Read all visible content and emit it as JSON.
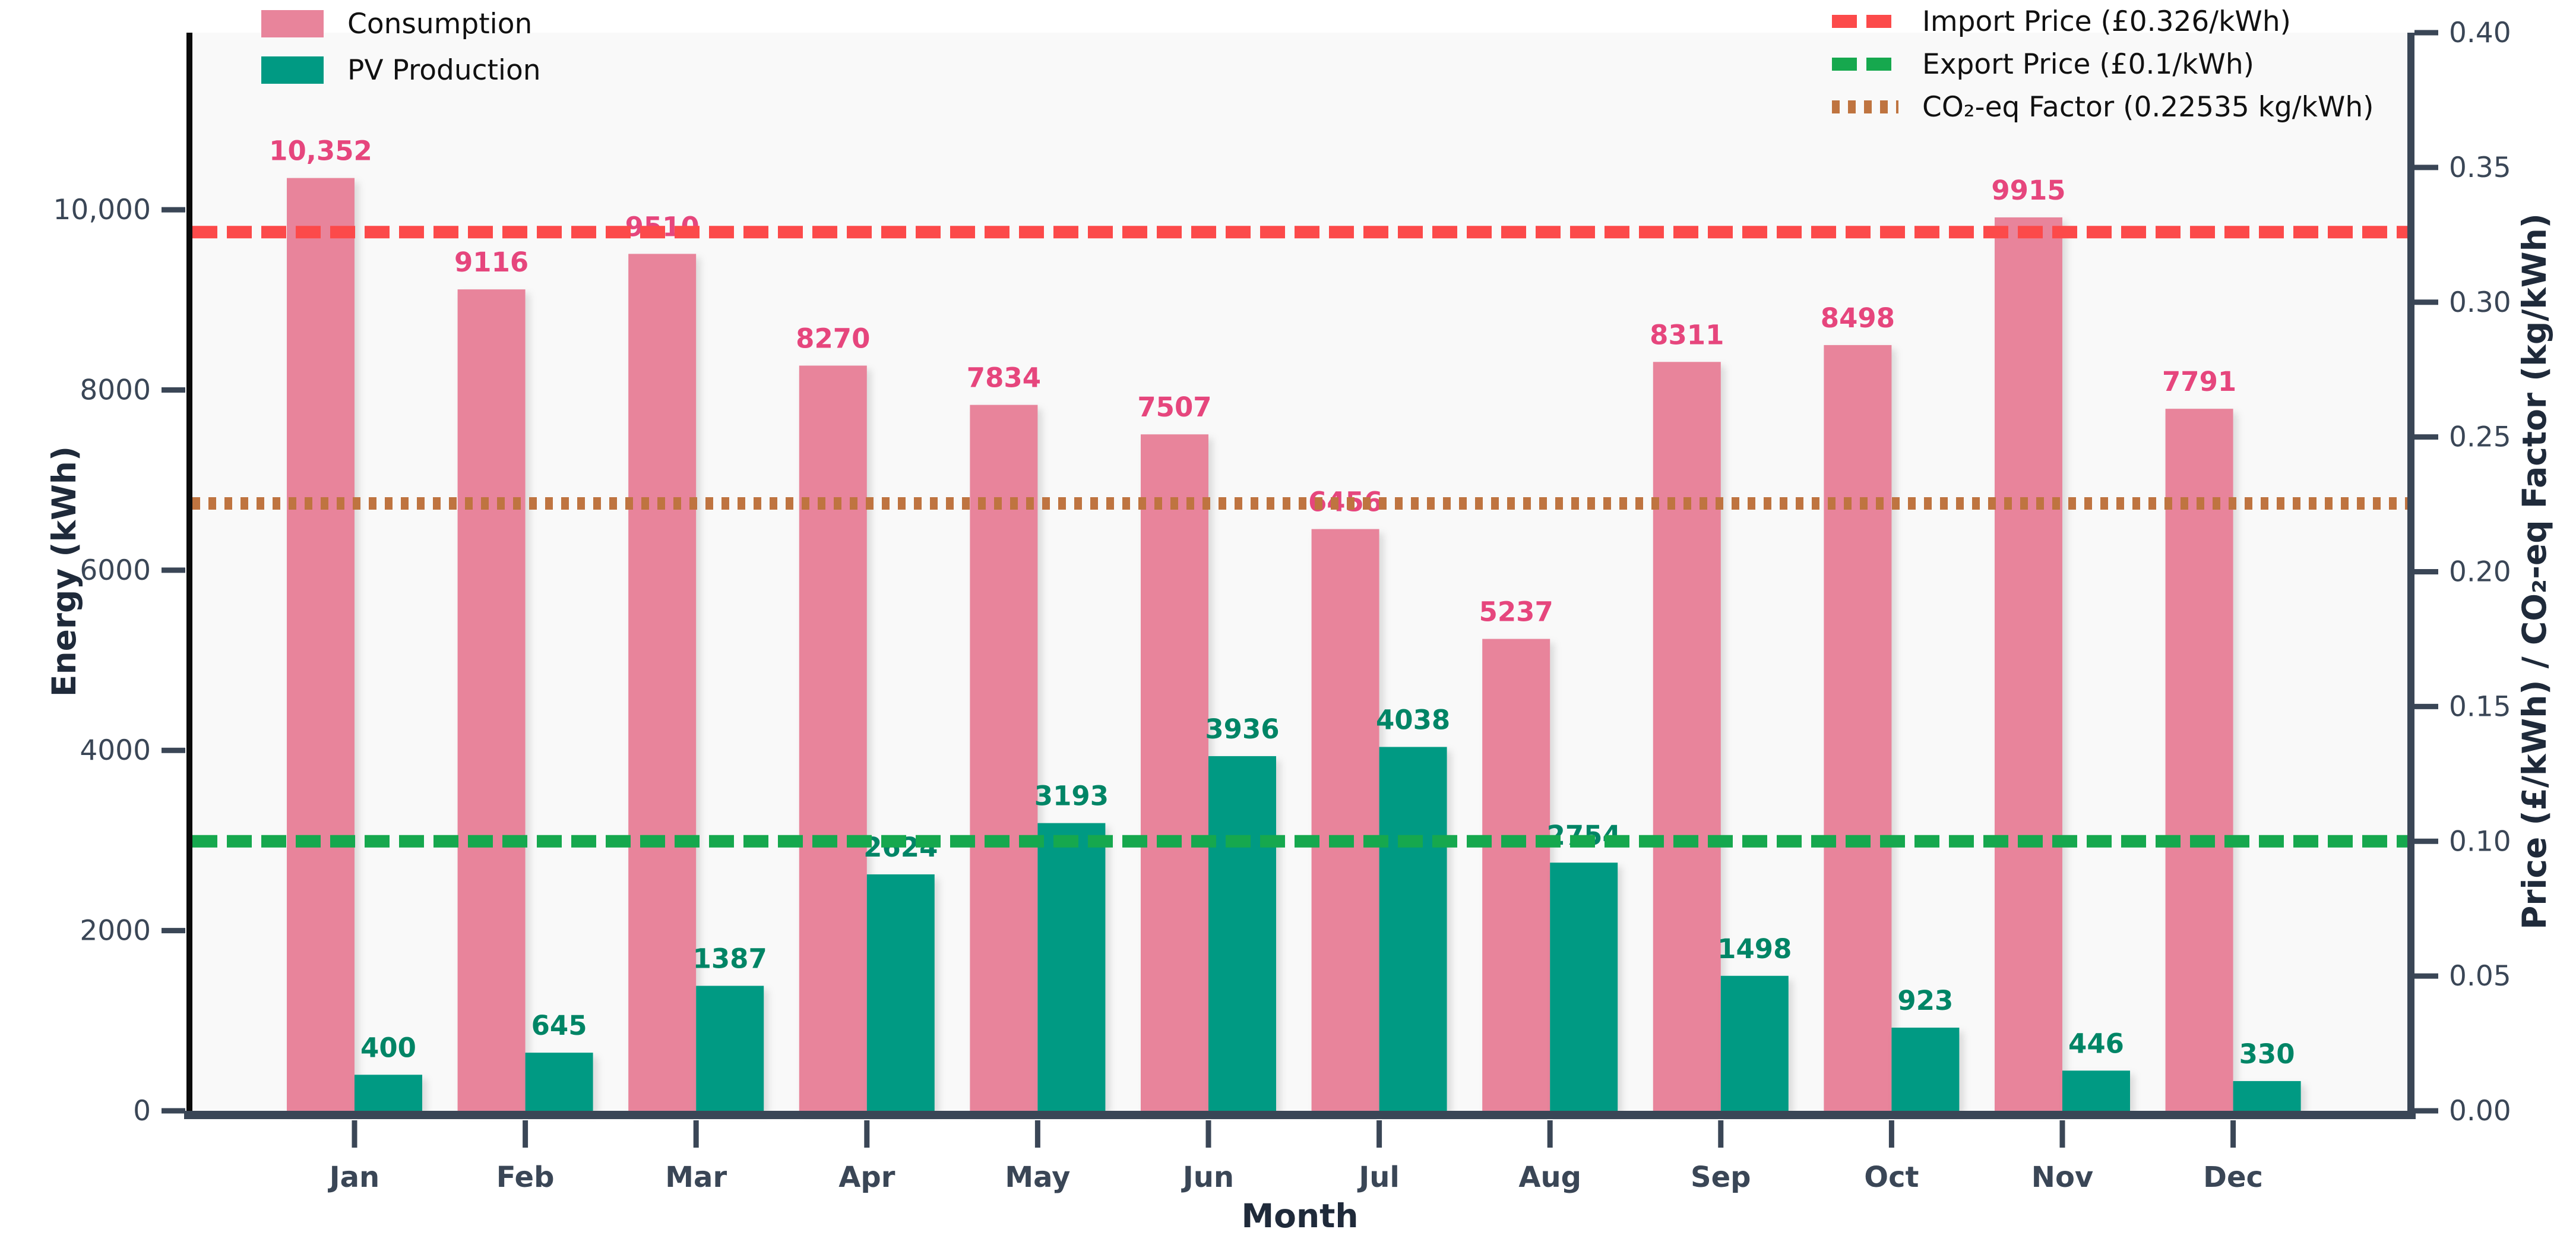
{
  "chart_data": {
    "type": "bar",
    "title": "",
    "xlabel": "Month",
    "ylabel_left": "Energy (kWh)",
    "ylabel_right": "Price (£/kWh) / CO₂-eq Factor (kg/kWh)",
    "categories": [
      "Jan",
      "Feb",
      "Mar",
      "Apr",
      "May",
      "Jun",
      "Jul",
      "Aug",
      "Sep",
      "Oct",
      "Nov",
      "Dec"
    ],
    "series": [
      {
        "name": "Consumption",
        "color": "#e8849b",
        "label_color": "#e6467d",
        "values": [
          10352,
          9116,
          9510,
          8270,
          7834,
          7507,
          6456,
          5237,
          8311,
          8498,
          9915,
          7791
        ],
        "labels": [
          "10,352",
          "9116",
          "9510",
          "8270",
          "7834",
          "7507",
          "6456",
          "5237",
          "8311",
          "8498",
          "9915",
          "7791"
        ]
      },
      {
        "name": "PV Production",
        "color": "#009a83",
        "label_color": "#008566",
        "values": [
          400,
          645,
          1387,
          2624,
          3193,
          3936,
          4038,
          2754,
          1498,
          923,
          446,
          330
        ],
        "labels": [
          "400",
          "645",
          "1387",
          "2624",
          "3193",
          "3936",
          "4038",
          "2754",
          "1498",
          "923",
          "446",
          "330"
        ]
      }
    ],
    "hlines": [
      {
        "label": "Import Price (£0.326/kWh)",
        "value": 0.326,
        "axis": "right",
        "color": "#fc4a4a",
        "dash": "42 16"
      },
      {
        "label": "Export Price (£0.1/kWh)",
        "value": 0.1,
        "axis": "right",
        "color": "#16a84e",
        "dash": "42 16"
      },
      {
        "label": "CO₂-eq Factor (0.22535 kg/kWh)",
        "value": 0.22535,
        "axis": "right",
        "color": "#bf7440",
        "dash": "13 14"
      }
    ],
    "left_axis": {
      "tick_values": [
        0,
        2000,
        4000,
        6000,
        8000,
        10000
      ],
      "tick_labels": [
        "0",
        "2000",
        "4000",
        "6000",
        "8000",
        "10,000"
      ]
    },
    "right_axis": {
      "tick_values": [
        0,
        0.05,
        0.1,
        0.15,
        0.2,
        0.25,
        0.3,
        0.35,
        0.4
      ],
      "tick_labels": [
        "0.00",
        "0.05",
        "0.10",
        "0.15",
        "0.20",
        "0.25",
        "0.30",
        "0.35",
        "0.40"
      ]
    },
    "ylim_left": [
      0,
      11965
    ],
    "ylim_right": [
      0,
      0.4
    ],
    "legend_position": {
      "bars": "top-left",
      "lines": "top-right"
    },
    "grid": false,
    "colors": {
      "plot_background": "#f9f9f9",
      "figure_background": "#ffffff",
      "tick_text": "#3a4656",
      "axis_label_text": "#1f2a3a",
      "legend_text": "#111111",
      "spine_left": "#0b0b0b",
      "spine_dark": "#3a4656"
    }
  }
}
